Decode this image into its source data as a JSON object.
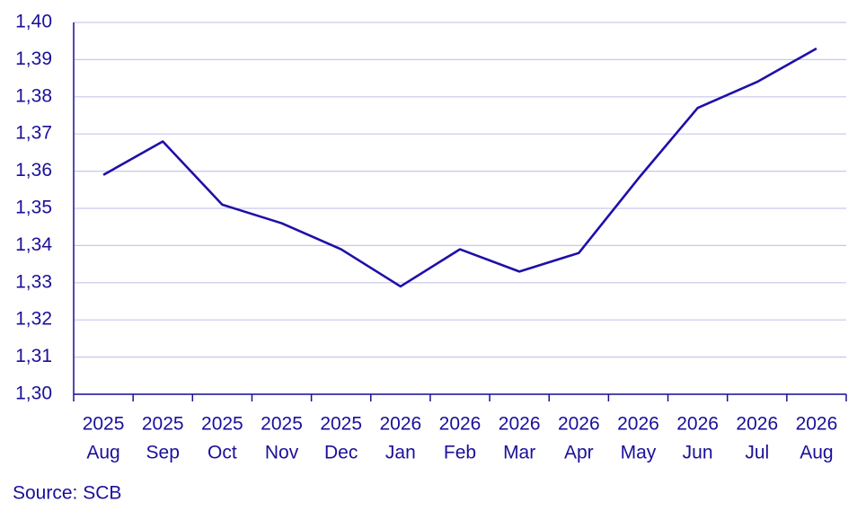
{
  "chart_data": {
    "type": "line",
    "source": "Source: SCB",
    "categories": [
      [
        "2025",
        "Aug"
      ],
      [
        "2025",
        "Sep"
      ],
      [
        "2025",
        "Oct"
      ],
      [
        "2025",
        "Nov"
      ],
      [
        "2025",
        "Dec"
      ],
      [
        "2026",
        "Jan"
      ],
      [
        "2026",
        "Feb"
      ],
      [
        "2026",
        "Mar"
      ],
      [
        "2026",
        "Apr"
      ],
      [
        "2026",
        "May"
      ],
      [
        "2026",
        "Jun"
      ],
      [
        "2026",
        "Jul"
      ],
      [
        "2026",
        "Aug"
      ]
    ],
    "values": [
      1.359,
      1.368,
      1.351,
      1.346,
      1.339,
      1.329,
      1.339,
      1.333,
      1.338,
      1.358,
      1.377,
      1.384,
      1.393
    ],
    "color": "#1e0fa8",
    "ylim": [
      1.3,
      1.4
    ],
    "yticks": [
      {
        "value": 1.3,
        "label": "1,30"
      },
      {
        "value": 1.31,
        "label": "1,31"
      },
      {
        "value": 1.32,
        "label": "1,32"
      },
      {
        "value": 1.33,
        "label": "1,33"
      },
      {
        "value": 1.34,
        "label": "1,34"
      },
      {
        "value": 1.35,
        "label": "1,35"
      },
      {
        "value": 1.36,
        "label": "1,36"
      },
      {
        "value": 1.37,
        "label": "1,37"
      },
      {
        "value": 1.38,
        "label": "1,38"
      },
      {
        "value": 1.39,
        "label": "1,39"
      },
      {
        "value": 1.4,
        "label": "1,40"
      }
    ],
    "grid": true
  }
}
